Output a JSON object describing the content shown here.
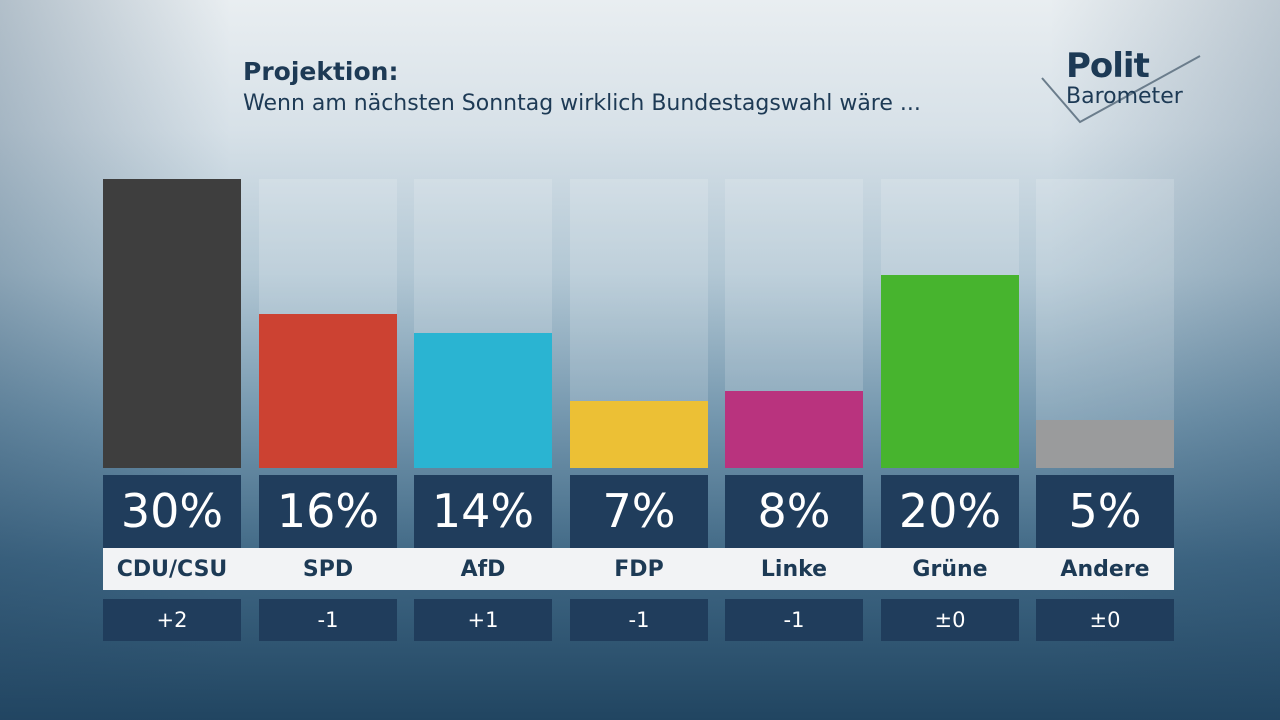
{
  "header": {
    "title": "Projektion:",
    "subtitle": "Wenn am nächsten Sonntag wirklich Bundestagswahl wäre ..."
  },
  "logo": {
    "line1": "Polit",
    "line2": "Barometer"
  },
  "chart_data": {
    "type": "bar",
    "title": "Projektion:",
    "subtitle": "Wenn am nächsten Sonntag wirklich Bundestagswahl wäre ...",
    "categories": [
      "CDU/CSU",
      "SPD",
      "AfD",
      "FDP",
      "Linke",
      "Grüne",
      "Andere"
    ],
    "values": [
      30,
      16,
      14,
      7,
      8,
      20,
      5
    ],
    "value_labels": [
      "30%",
      "16%",
      "14%",
      "7%",
      "8%",
      "20%",
      "5%"
    ],
    "changes": [
      "+2",
      "-1",
      "+1",
      "-1",
      "-1",
      "±0",
      "±0"
    ],
    "colors": [
      "#3e3e3e",
      "#cc4232",
      "#2ab4d2",
      "#ecc035",
      "#b9337e",
      "#47b42e",
      "#9a9b9c"
    ],
    "unit": "%",
    "ylim": [
      0,
      30
    ],
    "grid": false,
    "legend": "none"
  }
}
